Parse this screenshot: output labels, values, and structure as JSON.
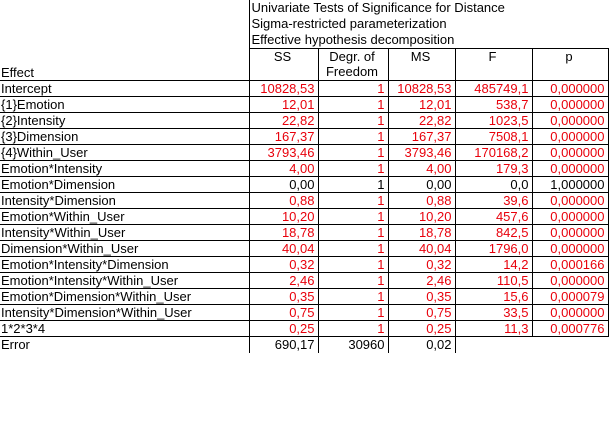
{
  "title_lines": [
    "Univariate Tests of Significance for Distance",
    "Sigma-restricted parameterization",
    "Effective hypothesis decomposition"
  ],
  "effect_header": "Effect",
  "columns": [
    {
      "line1": "SS",
      "line2": ""
    },
    {
      "line1": "Degr. of",
      "line2": "Freedom"
    },
    {
      "line1": "MS",
      "line2": ""
    },
    {
      "line1": "F",
      "line2": ""
    },
    {
      "line1": "p",
      "line2": ""
    }
  ],
  "rows": [
    {
      "effect": "Intercept",
      "ss": "10828,53",
      "df": "1",
      "ms": "10828,53",
      "f": "485749,1",
      "p": "0,000000",
      "significant": true
    },
    {
      "effect": "{1}Emotion",
      "ss": "12,01",
      "df": "1",
      "ms": "12,01",
      "f": "538,7",
      "p": "0,000000",
      "significant": true
    },
    {
      "effect": "{2}Intensity",
      "ss": "22,82",
      "df": "1",
      "ms": "22,82",
      "f": "1023,5",
      "p": "0,000000",
      "significant": true
    },
    {
      "effect": "{3}Dimension",
      "ss": "167,37",
      "df": "1",
      "ms": "167,37",
      "f": "7508,1",
      "p": "0,000000",
      "significant": true
    },
    {
      "effect": "{4}Within_User",
      "ss": "3793,46",
      "df": "1",
      "ms": "3793,46",
      "f": "170168,2",
      "p": "0,000000",
      "significant": true
    },
    {
      "effect": "Emotion*Intensity",
      "ss": "4,00",
      "df": "1",
      "ms": "4,00",
      "f": "179,3",
      "p": "0,000000",
      "significant": true
    },
    {
      "effect": "Emotion*Dimension",
      "ss": "0,00",
      "df": "1",
      "ms": "0,00",
      "f": "0,0",
      "p": "1,000000",
      "significant": false
    },
    {
      "effect": "Intensity*Dimension",
      "ss": "0,88",
      "df": "1",
      "ms": "0,88",
      "f": "39,6",
      "p": "0,000000",
      "significant": true
    },
    {
      "effect": "Emotion*Within_User",
      "ss": "10,20",
      "df": "1",
      "ms": "10,20",
      "f": "457,6",
      "p": "0,000000",
      "significant": true
    },
    {
      "effect": "Intensity*Within_User",
      "ss": "18,78",
      "df": "1",
      "ms": "18,78",
      "f": "842,5",
      "p": "0,000000",
      "significant": true
    },
    {
      "effect": "Dimension*Within_User",
      "ss": "40,04",
      "df": "1",
      "ms": "40,04",
      "f": "1796,0",
      "p": "0,000000",
      "significant": true
    },
    {
      "effect": "Emotion*Intensity*Dimension",
      "ss": "0,32",
      "df": "1",
      "ms": "0,32",
      "f": "14,2",
      "p": "0,000166",
      "significant": true
    },
    {
      "effect": "Emotion*Intensity*Within_User",
      "ss": "2,46",
      "df": "1",
      "ms": "2,46",
      "f": "110,5",
      "p": "0,000000",
      "significant": true
    },
    {
      "effect": "Emotion*Dimension*Within_User",
      "ss": "0,35",
      "df": "1",
      "ms": "0,35",
      "f": "15,6",
      "p": "0,000079",
      "significant": true
    },
    {
      "effect": "Intensity*Dimension*Within_User",
      "ss": "0,75",
      "df": "1",
      "ms": "0,75",
      "f": "33,5",
      "p": "0,000000",
      "significant": true
    },
    {
      "effect": "1*2*3*4",
      "ss": "0,25",
      "df": "1",
      "ms": "0,25",
      "f": "11,3",
      "p": "0,000776",
      "significant": true
    },
    {
      "effect": "Error",
      "ss": "690,17",
      "df": "30960",
      "ms": "0,02",
      "f": "",
      "p": "",
      "significant": false
    }
  ],
  "colors": {
    "significant": "#e8000b",
    "normal": "#000000"
  }
}
